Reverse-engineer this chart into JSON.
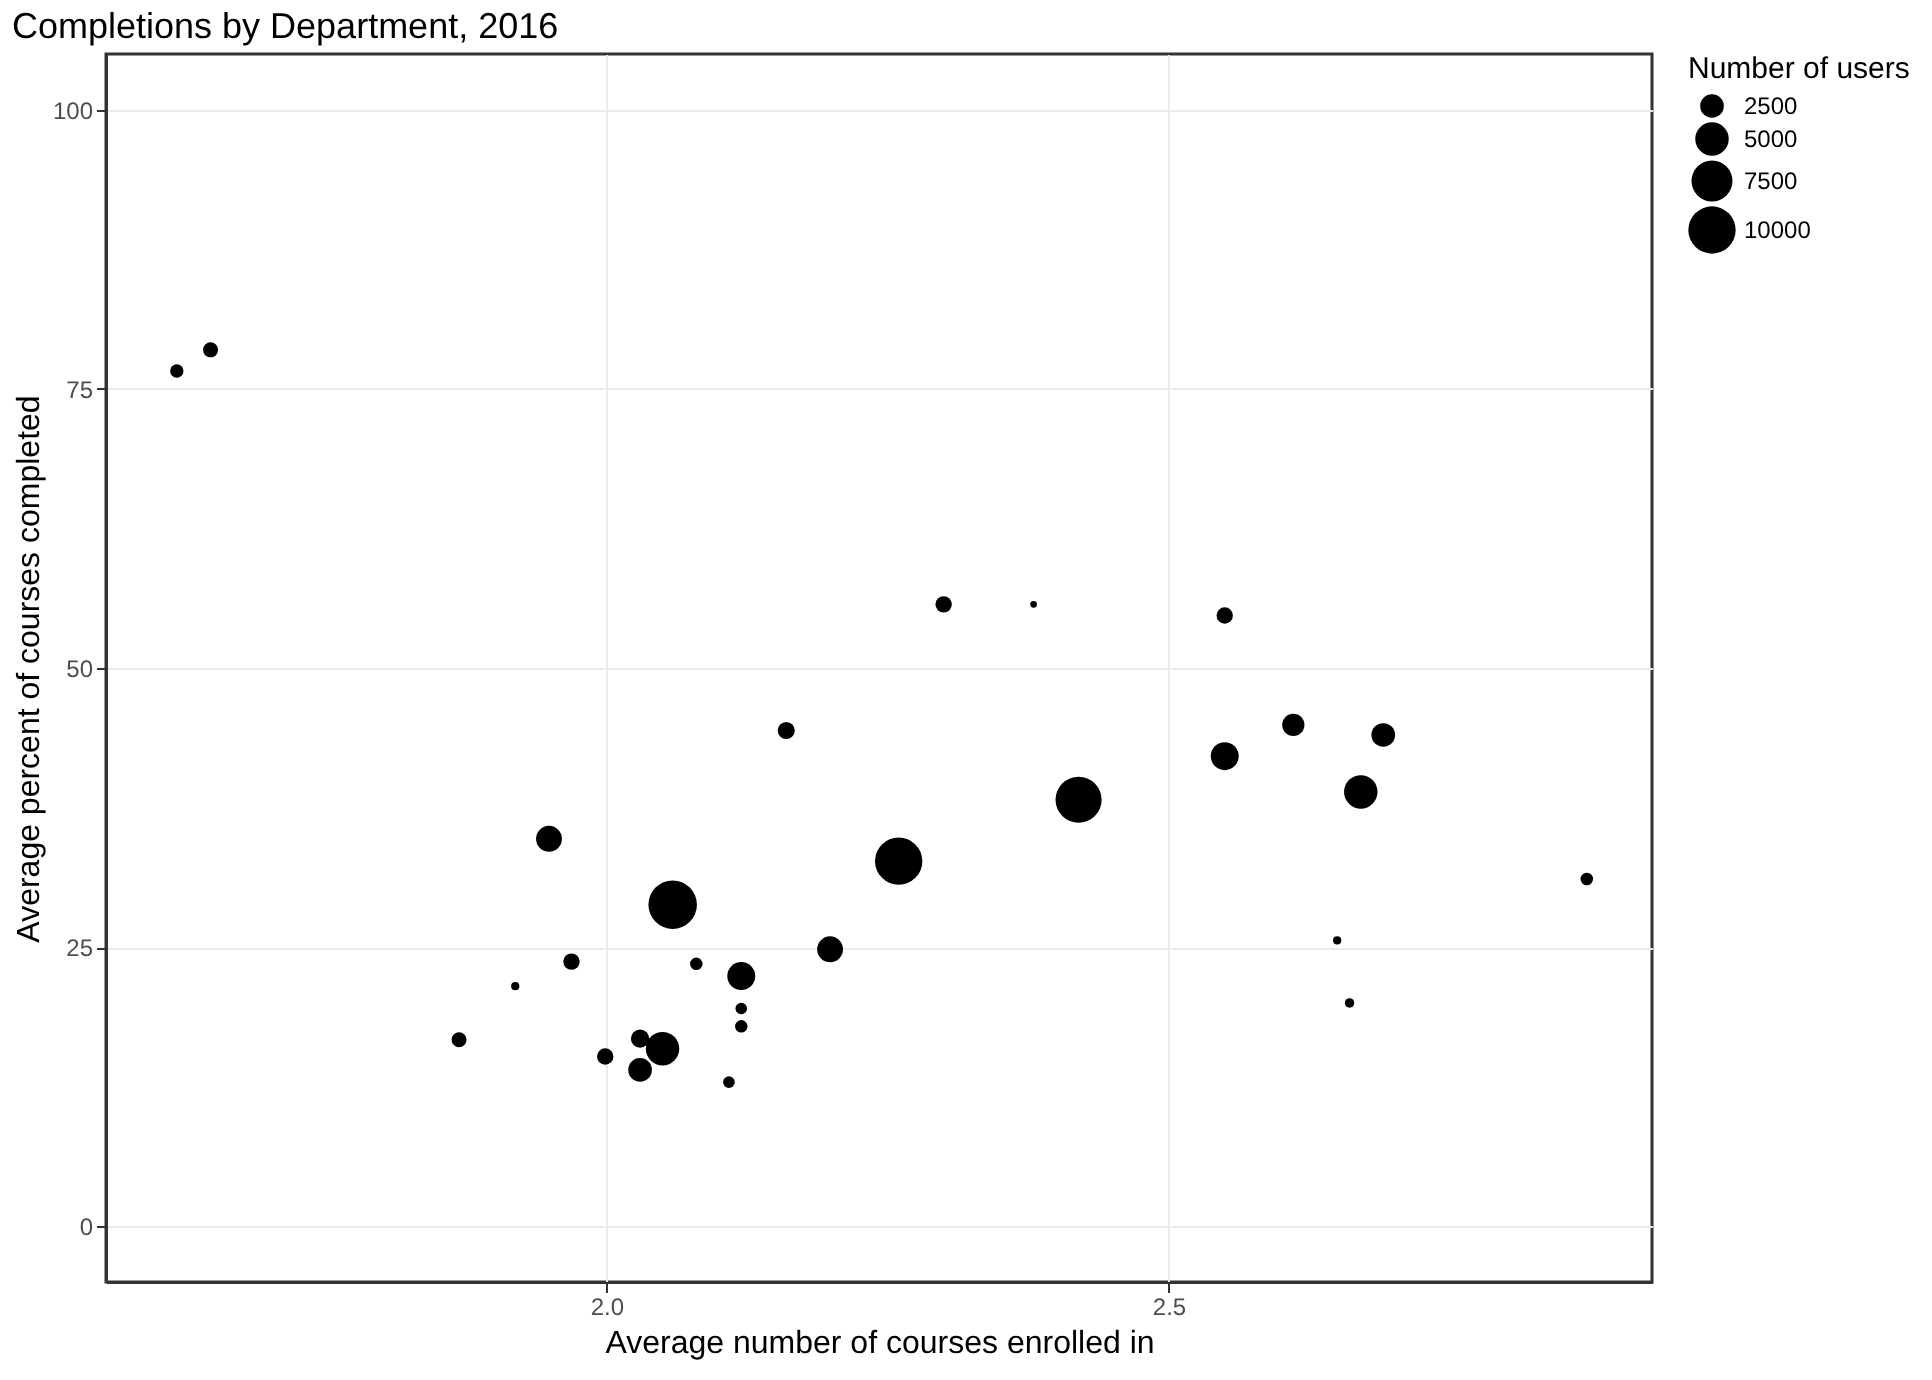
{
  "chart_data": {
    "type": "bubble",
    "title": "Completions by Department, 2016",
    "xlabel": "Average number of courses enrolled in",
    "ylabel": "Average percent of courses completed",
    "legend_title": "Number of users",
    "x": [
      1.618,
      1.648,
      2.3,
      2.38,
      2.55,
      1.949,
      2.059,
      2.26,
      2.42,
      2.55,
      2.611,
      2.691,
      2.671,
      2.872,
      2.65,
      2.661,
      2.16,
      2.199,
      2.12,
      2.08,
      2.12,
      2.12,
      2.109,
      1.969,
      1.919,
      1.869,
      1.999,
      2.03,
      2.05,
      2.03
    ],
    "values": [
      76.6,
      78.5,
      55.7,
      55.7,
      54.7,
      34.7,
      28.8,
      32.7,
      38.2,
      42.1,
      44.9,
      44.0,
      38.9,
      31.1,
      25.6,
      20.0,
      44.4,
      24.8,
      22.4,
      23.5,
      19.5,
      17.9,
      12.9,
      23.7,
      21.5,
      16.7,
      15.2,
      16.8,
      15.9,
      14.0
    ],
    "sizes": [
      800,
      1000,
      1200,
      200,
      1200,
      3000,
      10500,
      10000,
      9500,
      3500,
      2200,
      2500,
      5000,
      700,
      300,
      400,
      1300,
      3000,
      3500,
      700,
      600,
      700,
      600,
      1200,
      300,
      1000,
      1200,
      1500,
      5000,
      2500
    ],
    "size_legend": [
      2500,
      5000,
      7500,
      10000
    ],
    "color": "#000000",
    "xlim": [
      1.555,
      2.93
    ],
    "xticks": [
      {
        "value": 2.0,
        "label": "2.0"
      },
      2.5
    ],
    "ylim": [
      -5,
      105
    ],
    "yticks": [
      0,
      25,
      50,
      75,
      100
    ],
    "grid": true
  }
}
